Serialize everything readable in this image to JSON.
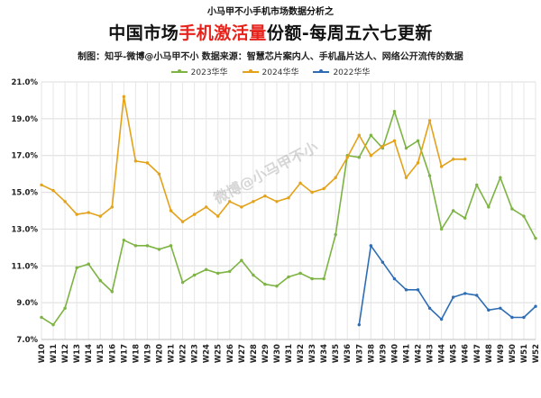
{
  "header": {
    "super_title": "小马甲不小手机市场数据分析之",
    "title_prefix": "中国市场",
    "title_highlight": "手机激活量",
    "title_suffix": "份额-每周五六七更新",
    "credit": "制图：知乎-微博@小马甲不小  数据来源：智慧芯片案内人、手机晶片达人、网络公开流传的数据"
  },
  "watermark": "微博@小马甲不小",
  "chart_data": {
    "type": "line",
    "title": "中国市场手机激活量份额-每周五六七更新",
    "categories": [
      "W10",
      "W11",
      "W12",
      "W13",
      "W14",
      "W15",
      "W16",
      "W17",
      "W18",
      "W19",
      "W20",
      "W21",
      "W22",
      "W23",
      "W24",
      "W25",
      "W26",
      "W27",
      "W28",
      "W29",
      "W30",
      "W31",
      "W32",
      "W33",
      "W34",
      "W35",
      "W36",
      "W37",
      "W38",
      "W39",
      "W40",
      "W41",
      "W42",
      "W43",
      "W44",
      "W45",
      "W46",
      "W47",
      "W48",
      "W49",
      "W50",
      "W51",
      "W52"
    ],
    "y_ticks": [
      "7.0%",
      "9.0%",
      "11.0%",
      "13.0%",
      "15.0%",
      "17.0%",
      "19.0%",
      "21.0%"
    ],
    "ylim": [
      7.0,
      21.0
    ],
    "grid": true,
    "legend_position": "top",
    "series": [
      {
        "name": "2023华华",
        "color": "#7cb342",
        "values": [
          8.2,
          7.8,
          8.7,
          10.9,
          11.1,
          10.2,
          9.6,
          12.4,
          12.1,
          12.1,
          11.9,
          12.1,
          10.1,
          10.5,
          10.8,
          10.6,
          10.7,
          11.3,
          10.5,
          10.0,
          9.9,
          10.4,
          10.6,
          10.3,
          10.3,
          12.7,
          17.0,
          16.9,
          18.1,
          17.4,
          19.4,
          17.4,
          17.8,
          15.9,
          13.0,
          14.0,
          13.6,
          15.4,
          14.2,
          15.8,
          14.1,
          13.7,
          12.5
        ]
      },
      {
        "name": "2024华华",
        "color": "#e3a21a",
        "values": [
          15.4,
          15.1,
          14.5,
          13.8,
          13.9,
          13.7,
          14.2,
          20.2,
          16.7,
          16.6,
          16.0,
          14.0,
          13.4,
          13.8,
          14.2,
          13.7,
          14.5,
          14.2,
          14.5,
          14.8,
          14.5,
          14.7,
          15.5,
          15.0,
          15.2,
          15.8,
          16.9,
          18.1,
          17.0,
          17.5,
          17.8,
          15.8,
          16.6,
          18.9,
          16.4,
          16.8,
          16.8,
          null,
          null,
          null,
          null,
          null,
          null
        ]
      },
      {
        "name": "2022华华",
        "color": "#2e6db4",
        "values": [
          null,
          null,
          null,
          null,
          null,
          null,
          null,
          null,
          null,
          null,
          null,
          null,
          null,
          null,
          null,
          null,
          null,
          null,
          null,
          null,
          null,
          null,
          null,
          null,
          null,
          null,
          null,
          7.8,
          12.1,
          11.2,
          10.3,
          9.7,
          9.7,
          8.7,
          8.1,
          9.3,
          9.5,
          9.4,
          8.6,
          8.7,
          8.2,
          8.2,
          8.8
        ]
      }
    ]
  }
}
